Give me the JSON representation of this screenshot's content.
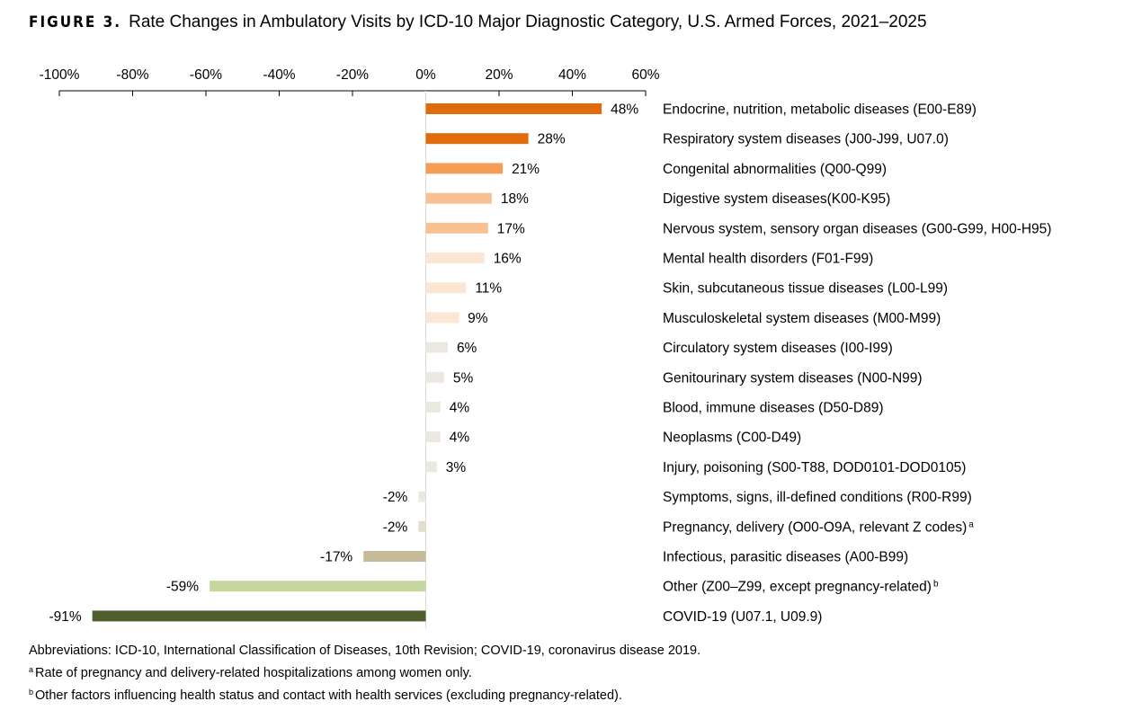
{
  "figure": {
    "label": "FIGURE 3.",
    "title": "Rate Changes in Ambulatory Visits by ICD-10 Major Diagnostic Category, U.S. Armed Forces, 2021–2025"
  },
  "chart_data": {
    "type": "bar",
    "orientation": "horizontal",
    "xlim": [
      -100,
      60
    ],
    "x_ticks": [
      -100,
      -80,
      -60,
      -40,
      -20,
      0,
      20,
      40,
      60
    ],
    "x_tick_labels": [
      "-100%",
      "-80%",
      "-60%",
      "-40%",
      "-20%",
      "0%",
      "20%",
      "40%",
      "60%"
    ],
    "axis_position": "top",
    "grid": false,
    "legend": "none",
    "categories": [
      "Endocrine, nutrition, metabolic diseases (E00-E89)",
      "Respiratory system diseases (J00-J99, U07.0)",
      "Congenital abnormalities (Q00-Q99)",
      "Digestive system diseases(K00-K95)",
      "Nervous system, sensory organ diseases (G00-G99, H00-H95)",
      "Mental health disorders (F01-F99)",
      "Skin, subcutaneous tissue diseases (L00-L99)",
      "Musculoskeletal system diseases (M00-M99)",
      "Circulatory system diseases (I00-I99)",
      "Genitourinary system diseases (N00-N99)",
      "Blood, immune diseases (D50-D89)",
      "Neoplasms (C00-D49)",
      "Injury, poisoning (S00-T88, DOD0101-DOD0105)",
      "Symptoms, signs, ill-defined conditions (R00-R99)",
      "Pregnancy, delivery (O00-O9A, relevant Z codes)",
      "Infectious, parasitic diseases (A00-B99)",
      "Other (Z00–Z99, except pregnancy-related)",
      "COVID-19 (U07.1, U09.9)"
    ],
    "category_superscripts": [
      "",
      "",
      "",
      "",
      "",
      "",
      "",
      "",
      "",
      "",
      "",
      "",
      "",
      "",
      "a",
      "",
      "b",
      ""
    ],
    "values": [
      48,
      28,
      21,
      18,
      17,
      16,
      11,
      9,
      6,
      5,
      4,
      4,
      3,
      -2,
      -2,
      -17,
      -59,
      -91
    ],
    "value_labels": [
      "48%",
      "28%",
      "21%",
      "18%",
      "17%",
      "16%",
      "11%",
      "9%",
      "6%",
      "5%",
      "4%",
      "4%",
      "3%",
      "-2%",
      "-2%",
      "-17%",
      "-59%",
      "-91%"
    ],
    "bar_colors": [
      "#e06b0a",
      "#e06b0a",
      "#f59d52",
      "#f7c193",
      "#f7c193",
      "#fbe6d4",
      "#fbe6d4",
      "#fbe6d4",
      "#ebe8df",
      "#ebe8df",
      "#ebe8df",
      "#ebe8df",
      "#ebe8df",
      "#ebe8df",
      "#e3dfd0",
      "#c7bb97",
      "#c6d69f",
      "#4f5e2d"
    ]
  },
  "notes": {
    "abbreviations": "Abbreviations: ICD-10, International Classification of Diseases, 10th Revision; COVID-19, coronavirus disease 2019.",
    "footnote_a_mark": "a",
    "footnote_a": "Rate of pregnancy and delivery-related hospitalizations among women only.",
    "footnote_b_mark": "b",
    "footnote_b": "Other factors influencing health status and contact with health services (excluding pregnancy-related)."
  }
}
